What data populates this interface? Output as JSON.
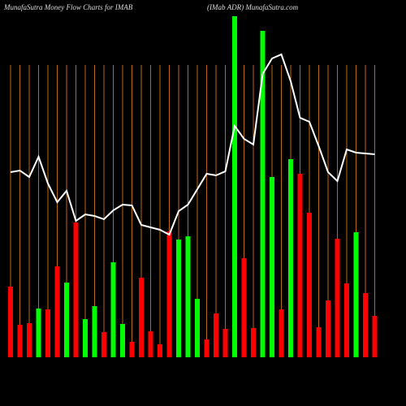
{
  "chart_data": {
    "type": "bar",
    "title": "MunafaSutra  Money Flow  Charts for IMAB",
    "subtitle": "(IMab ADR) MunafaSutra.com",
    "categories": [
      null,
      null,
      null,
      null,
      null,
      null,
      null,
      null,
      null,
      null,
      null,
      null,
      null,
      null,
      null,
      null,
      null,
      null,
      null,
      null,
      null,
      null,
      null,
      null,
      null,
      null,
      null,
      null,
      null,
      null,
      null,
      null,
      null,
      null,
      null,
      null,
      null,
      null,
      null,
      null
    ],
    "values": [
      87,
      40,
      42,
      60,
      59,
      112,
      92,
      166,
      47,
      63,
      31,
      117,
      41,
      19,
      98,
      32,
      16,
      155,
      145,
      149,
      72,
      22,
      54,
      35,
      420,
      122,
      36,
      402,
      222,
      59,
      244,
      226,
      178,
      37,
      70,
      146,
      91,
      154,
      79,
      51
    ],
    "colors": [
      "#ff0000",
      "#ff0000",
      "#ff0000",
      "#00ff00",
      "#ff0000",
      "#ff0000",
      "#00ff00",
      "#ff0000",
      "#00ff00",
      "#00ff00",
      "#ff0000",
      "#00ff00",
      "#00ff00",
      "#ff0000",
      "#ff0000",
      "#ff0000",
      "#ff0000",
      "#ff0000",
      "#00ff00",
      "#00ff00",
      "#00ff00",
      "#ff0000",
      "#ff0000",
      "#ff0000",
      "#00ff00",
      "#ff0000",
      "#ff0000",
      "#00ff00",
      "#00ff00",
      "#ff0000",
      "#00ff00",
      "#ff0000",
      "#ff0000",
      "#ff0000",
      "#ff0000",
      "#ff0000",
      "#ff0000",
      "#00ff00",
      "#ff0000",
      "#ff0000"
    ],
    "line_values": [
      228,
      230,
      222,
      247,
      214,
      191,
      205,
      168,
      176,
      174,
      170,
      181,
      188,
      187,
      163,
      160,
      157,
      151,
      180,
      188,
      207,
      226,
      224,
      229,
      285,
      269,
      262,
      349,
      368,
      373,
      340,
      295,
      290,
      260,
      228,
      217,
      256,
      252,
      251,
      250
    ],
    "line_color": "#ffffff",
    "ylim": [
      0,
      420
    ],
    "grid": true,
    "grid_color": "#b8661a"
  }
}
